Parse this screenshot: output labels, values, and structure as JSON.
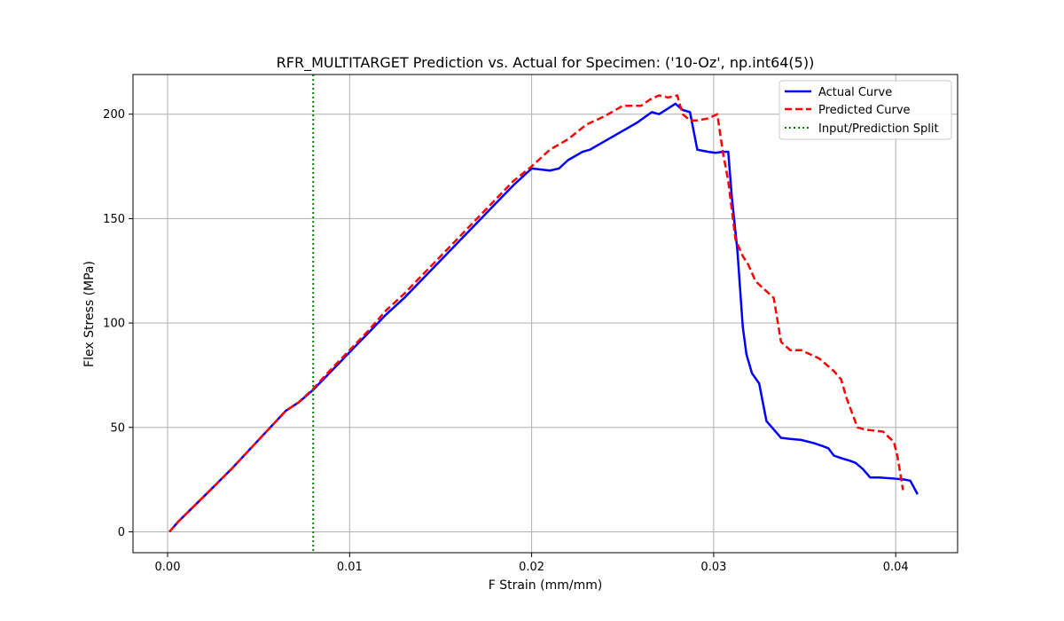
{
  "chart_data": {
    "type": "line",
    "title": "RFR_MULTITARGET Prediction vs. Actual for Specimen: ('10-Oz', np.int64(5))",
    "xlabel": "F Strain (mm/mm)",
    "ylabel": "Flex Stress (MPa)",
    "xlim": [
      -0.0019,
      0.0434
    ],
    "ylim": [
      -10,
      219
    ],
    "xticks": [
      0.0,
      0.01,
      0.02,
      0.03,
      0.04
    ],
    "xtick_labels": [
      "0.00",
      "0.01",
      "0.02",
      "0.03",
      "0.04"
    ],
    "yticks": [
      0,
      50,
      100,
      150,
      200
    ],
    "ytick_labels": [
      "0",
      "50",
      "100",
      "150",
      "200"
    ],
    "grid": true,
    "legend_position": "top-right",
    "split_line": {
      "x": 0.008,
      "label": "Input/Prediction Split",
      "color": "#008000"
    },
    "series": [
      {
        "name": "Actual Curve",
        "color": "#0000ff",
        "style": "solid",
        "x": [
          0.0001,
          0.0006,
          0.002,
          0.0035,
          0.005,
          0.0065,
          0.0072,
          0.008,
          0.009,
          0.01,
          0.011,
          0.012,
          0.013,
          0.014,
          0.015,
          0.016,
          0.017,
          0.018,
          0.019,
          0.02,
          0.021,
          0.0215,
          0.022,
          0.0228,
          0.0232,
          0.024,
          0.025,
          0.0258,
          0.0266,
          0.027,
          0.0279,
          0.0283,
          0.0287,
          0.0291,
          0.0297,
          0.0301,
          0.0305,
          0.0308,
          0.031,
          0.0313,
          0.0316,
          0.0318,
          0.0321,
          0.0325,
          0.0329,
          0.0337,
          0.0342,
          0.0348,
          0.0355,
          0.036,
          0.0363,
          0.0366,
          0.0371,
          0.0375,
          0.0378,
          0.0382,
          0.0386,
          0.0391,
          0.0399,
          0.0405,
          0.0408,
          0.0412
        ],
        "y": [
          0,
          5,
          17,
          30,
          44,
          58,
          62,
          68,
          77,
          86,
          95,
          104,
          112,
          121,
          130,
          139,
          148,
          157,
          166,
          174,
          173,
          174,
          178,
          182,
          183,
          187,
          192,
          196,
          201,
          200,
          205,
          202,
          201,
          183,
          182,
          181.5,
          182,
          182,
          160,
          135,
          98,
          85,
          76,
          71,
          53,
          45,
          44.5,
          44,
          42.5,
          41,
          40,
          36.5,
          35,
          34,
          33,
          30,
          26,
          26,
          25.5,
          25,
          24.5,
          18
        ]
      },
      {
        "name": "Predicted Curve",
        "color": "#ff0000",
        "style": "dashed",
        "x": [
          0.0001,
          0.0006,
          0.002,
          0.0035,
          0.005,
          0.0065,
          0.0072,
          0.008,
          0.009,
          0.01,
          0.011,
          0.012,
          0.013,
          0.014,
          0.015,
          0.016,
          0.017,
          0.018,
          0.019,
          0.02,
          0.021,
          0.022,
          0.023,
          0.024,
          0.025,
          0.026,
          0.0265,
          0.027,
          0.0275,
          0.028,
          0.0283,
          0.0287,
          0.0291,
          0.0297,
          0.0302,
          0.0305,
          0.0308,
          0.0312,
          0.0316,
          0.0319,
          0.0323,
          0.0328,
          0.0333,
          0.0337,
          0.0342,
          0.0348,
          0.0353,
          0.0358,
          0.0362,
          0.0366,
          0.037,
          0.0373,
          0.0376,
          0.0379,
          0.0383,
          0.0388,
          0.0393,
          0.0399,
          0.0401,
          0.0404
        ],
        "y": [
          0,
          5,
          17,
          30,
          44,
          58,
          62,
          68.5,
          78,
          87,
          96,
          106,
          114,
          123,
          132,
          141,
          150,
          159,
          168,
          175,
          183,
          188,
          195,
          199,
          204,
          204,
          207,
          209,
          208,
          209,
          200,
          197,
          197,
          198,
          200,
          182,
          168,
          140,
          132,
          128,
          120,
          116,
          112,
          91,
          87,
          87,
          85,
          83,
          80,
          77,
          73,
          64,
          57,
          50,
          49,
          48.5,
          48,
          43,
          36,
          20
        ]
      }
    ]
  }
}
